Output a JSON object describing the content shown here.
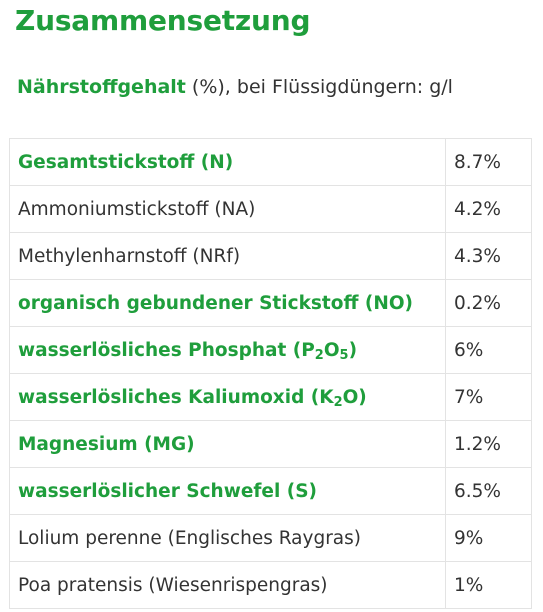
{
  "heading": "Zusammensetzung",
  "subheading": {
    "strong": "Nährstoffgehalt",
    "rest": " (%), bei Flüssigdüngern: g/l"
  },
  "rows": [
    {
      "parts": [
        {
          "t": "Gesamtstickstoff (N)"
        }
      ],
      "value": "8.7%",
      "highlight": true
    },
    {
      "parts": [
        {
          "t": "Ammoniumstickstoff (NA)"
        }
      ],
      "value": "4.2%",
      "highlight": false
    },
    {
      "parts": [
        {
          "t": "Methylenharnstoff (NRf)"
        }
      ],
      "value": "4.3%",
      "highlight": false
    },
    {
      "parts": [
        {
          "t": "organisch gebundener Stickstoff (NO)"
        }
      ],
      "value": "0.2%",
      "highlight": true
    },
    {
      "parts": [
        {
          "t": "wasserlösliches Phosphat (P"
        },
        {
          "t": "2",
          "sub": true
        },
        {
          "t": "O"
        },
        {
          "t": "5",
          "sub": true
        },
        {
          "t": ")"
        }
      ],
      "value": "6%",
      "highlight": true
    },
    {
      "parts": [
        {
          "t": "wasserlösliches Kaliumoxid (K"
        },
        {
          "t": "2",
          "sub": true
        },
        {
          "t": "O)"
        }
      ],
      "value": "7%",
      "highlight": true
    },
    {
      "parts": [
        {
          "t": "Magnesium (MG)"
        }
      ],
      "value": "1.2%",
      "highlight": true
    },
    {
      "parts": [
        {
          "t": "wasserlöslicher Schwefel (S)"
        }
      ],
      "value": "6.5%",
      "highlight": true
    },
    {
      "parts": [
        {
          "t": "Lolium perenne (Englisches Raygras)"
        }
      ],
      "value": "9%",
      "highlight": false
    },
    {
      "parts": [
        {
          "t": "Poa pratensis (Wiesenrispengras)"
        }
      ],
      "value": "1%",
      "highlight": false
    }
  ],
  "colors": {
    "accent": "#1f9e3c",
    "text": "#333333",
    "border": "#e3e3e3"
  }
}
